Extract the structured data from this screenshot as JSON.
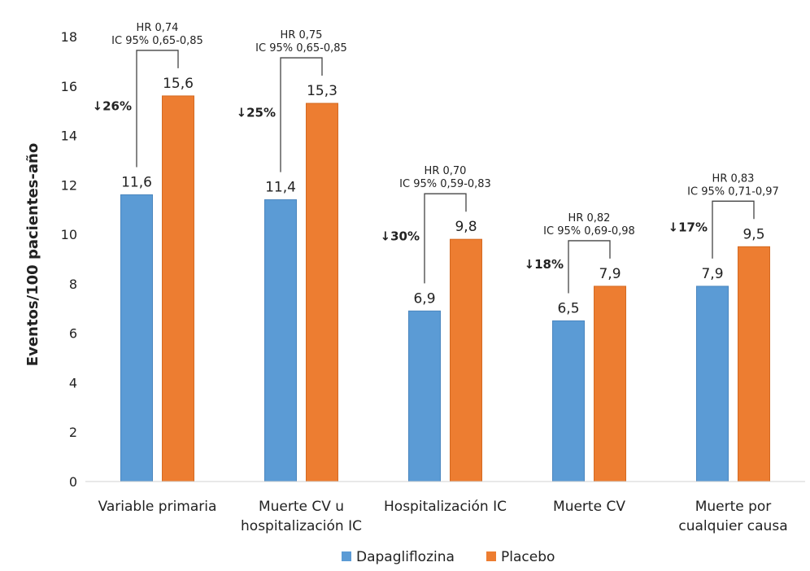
{
  "chart_data": {
    "type": "bar",
    "ylabel": "Eventos/100 pacientes-año",
    "ylim": [
      0,
      18
    ],
    "yticks": [
      0,
      2,
      4,
      6,
      8,
      10,
      12,
      14,
      16,
      18
    ],
    "grid": false,
    "legend": "bottom",
    "categories": [
      [
        "Variable primaria"
      ],
      [
        "Muerte CV u",
        "hospitalización IC"
      ],
      [
        "Hospitalización IC"
      ],
      [
        "Muerte CV"
      ],
      [
        "Muerte por",
        "cualquier causa"
      ]
    ],
    "series": [
      {
        "name": "Dapagliflozina",
        "color": "#5b9bd5",
        "values": [
          11.6,
          11.4,
          6.9,
          6.5,
          7.9
        ],
        "labels": [
          "11,6",
          "11,4",
          "6,9",
          "6,5",
          "7,9"
        ]
      },
      {
        "name": "Placebo",
        "color": "#ed7d31",
        "values": [
          15.6,
          15.3,
          9.8,
          7.9,
          9.5
        ],
        "labels": [
          "15,6",
          "15,3",
          "9,8",
          "7,9",
          "9,5"
        ]
      }
    ],
    "annotations": [
      {
        "hr": "HR 0,74",
        "ci": "IC 95% 0,65-0,85",
        "reduction": "↓26%"
      },
      {
        "hr": "HR 0,75",
        "ci": "IC 95% 0,65-0,85",
        "reduction": "↓25%"
      },
      {
        "hr": "HR 0,70",
        "ci": "IC 95% 0,59-0,83",
        "reduction": "↓30%"
      },
      {
        "hr": "HR 0,82",
        "ci": "IC 95% 0,69-0,98",
        "reduction": "↓18%"
      },
      {
        "hr": "HR 0,83",
        "ci": "IC 95% 0,71-0,97",
        "reduction": "↓17%"
      }
    ]
  }
}
